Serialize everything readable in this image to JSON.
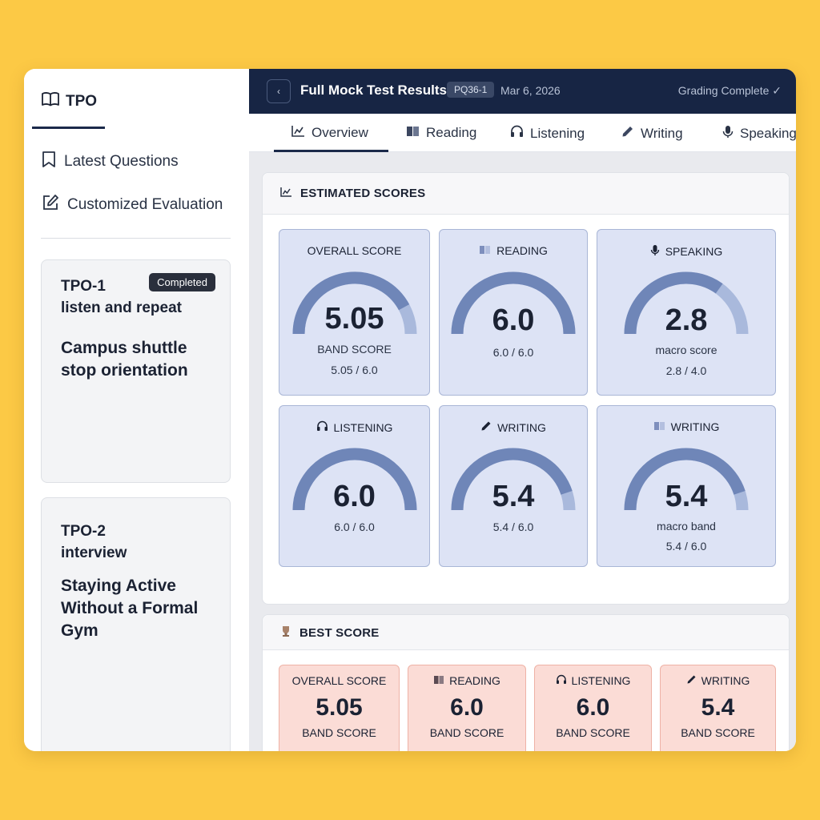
{
  "sidebar": {
    "brand": "TPO",
    "nav": [
      {
        "label": "Latest Questions",
        "icon": "bookmark-icon"
      },
      {
        "label": "Customized Evaluation",
        "icon": "edit-icon"
      }
    ],
    "cards": [
      {
        "id": "TPO-1",
        "type": "listen and repeat",
        "title": "Campus shuttle stop orientation",
        "badge": "Completed"
      },
      {
        "id": "TPO-2",
        "type": "interview",
        "title": "Staying Active Without a Formal Gym"
      }
    ]
  },
  "header": {
    "title": "Full Mock Test Results",
    "code": "PQ36-1",
    "date": "Mar 6, 2026",
    "status": "Grading Complete ✓"
  },
  "tabs": [
    {
      "label": "Overview",
      "icon": "chart-icon",
      "active": true
    },
    {
      "label": "Reading",
      "icon": "book-icon"
    },
    {
      "label": "Listening",
      "icon": "headphones-icon"
    },
    {
      "label": "Writing",
      "icon": "pencil-icon"
    },
    {
      "label": "Speaking",
      "icon": "microphone-icon"
    }
  ],
  "estimated": {
    "title": "ESTIMATED SCORES",
    "cards": [
      {
        "label": "OVERALL SCORE",
        "icon": "",
        "value": "5.05",
        "sub": "BAND SCORE",
        "ratio": "5.05 / 6.0",
        "fraction": 0.842
      },
      {
        "label": "READING",
        "icon": "book-icon",
        "value": "6.0",
        "sub": "",
        "ratio": "6.0 / 6.0",
        "fraction": 1.0
      },
      {
        "label": "SPEAKING",
        "icon": "microphone-icon",
        "value": "2.8",
        "sub": "macro score",
        "ratio": "2.8 / 4.0",
        "fraction": 0.7
      },
      {
        "label": "LISTENING",
        "icon": "headphones-icon",
        "value": "6.0",
        "sub": "",
        "ratio": "6.0 / 6.0",
        "fraction": 1.0
      },
      {
        "label": "WRITING",
        "icon": "pencil-icon",
        "value": "5.4",
        "sub": "",
        "ratio": "5.4 / 6.0",
        "fraction": 0.9
      },
      {
        "label": "WRITING",
        "icon": "book-icon",
        "value": "5.4",
        "sub": "macro band",
        "ratio": "5.4 / 6.0",
        "fraction": 0.9
      }
    ]
  },
  "best": {
    "title": "BEST SCORE",
    "cards": [
      {
        "label": "OVERALL SCORE",
        "icon": "",
        "value": "5.05",
        "sub": "BAND SCORE"
      },
      {
        "label": "READING",
        "icon": "book-icon",
        "value": "6.0",
        "sub": "BAND SCORE"
      },
      {
        "label": "LISTENING",
        "icon": "headphones-icon",
        "value": "6.0",
        "sub": "BAND SCORE"
      },
      {
        "label": "WRITING",
        "icon": "pencil-icon",
        "value": "5.4",
        "sub": "BAND SCORE"
      }
    ]
  },
  "colors": {
    "accent": "#172544",
    "gauge_fill": "#6f86b8",
    "gauge_track": "#a9b9dc",
    "estimated_card": "#dde3f5",
    "best_card": "#fbdcd6"
  }
}
